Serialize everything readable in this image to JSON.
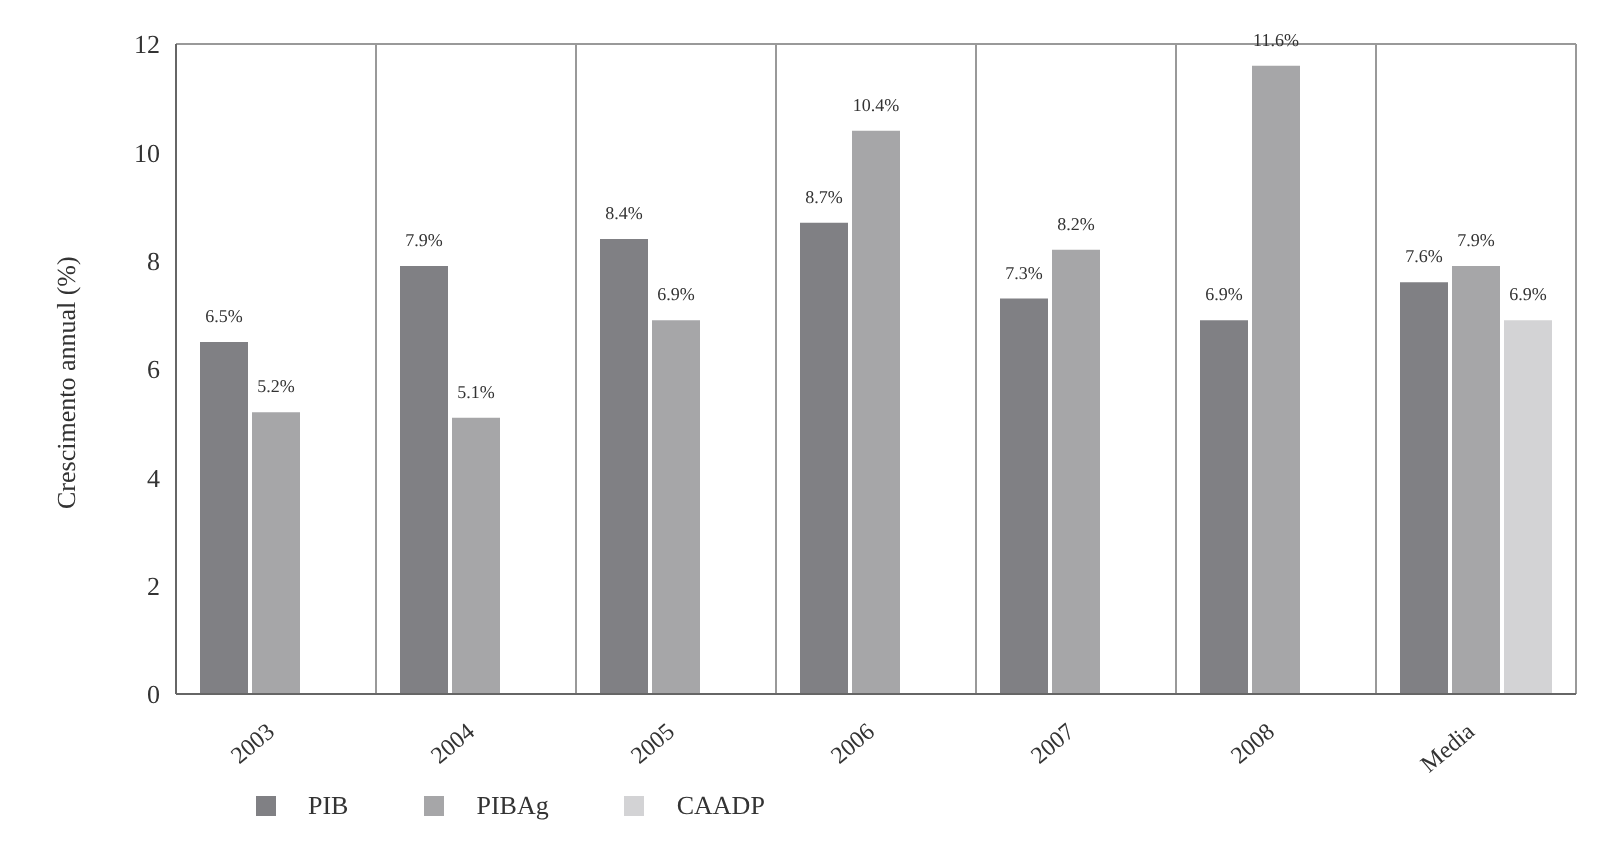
{
  "chart_data": {
    "type": "bar",
    "ylabel": "Crescimento annual (%)",
    "categories": [
      "2003",
      "2004",
      "2005",
      "2006",
      "2007",
      "2008",
      "Media"
    ],
    "series": [
      {
        "name": "PIB",
        "color": "#808084",
        "values": [
          6.5,
          7.9,
          8.4,
          8.7,
          7.3,
          6.9,
          7.6
        ],
        "value_labels": [
          "6.5%",
          "7.9%",
          "8.4%",
          "8.7%",
          "7.3%",
          "6.9%",
          "7.6%"
        ]
      },
      {
        "name": "PIBAg",
        "color": "#a6a6a8",
        "values": [
          5.2,
          5.1,
          6.9,
          10.4,
          8.2,
          11.6,
          7.9
        ],
        "value_labels": [
          "5.2%",
          "5.1%",
          "6.9%",
          "10.4%",
          "8.2%",
          "11.6%",
          "7.9%"
        ]
      },
      {
        "name": "CAADP",
        "color": "#d3d3d5",
        "values": [
          null,
          null,
          null,
          null,
          null,
          null,
          6.9
        ],
        "value_labels": [
          null,
          null,
          null,
          null,
          null,
          null,
          "6.9%"
        ]
      }
    ],
    "ylim": [
      0,
      12
    ],
    "yticks": [
      0,
      2,
      4,
      6,
      8,
      10,
      12
    ],
    "grid": "x",
    "legend": "bottom left"
  }
}
